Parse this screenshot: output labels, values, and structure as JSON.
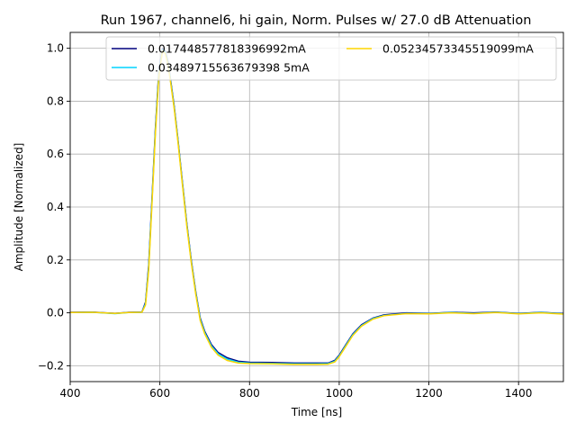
{
  "chart_data": {
    "type": "line",
    "title": "Run 1967, channel6, hi gain, Norm. Pulses w/ 27.0 dB Attenuation",
    "xlabel": "Time [ns]",
    "ylabel": "Amplitude [Normalized]",
    "xlim": [
      400,
      1500
    ],
    "ylim": [
      -0.26,
      1.06
    ],
    "xticks": [
      400,
      600,
      800,
      1000,
      1200,
      1400
    ],
    "yticks": [
      -0.2,
      0.0,
      0.2,
      0.4,
      0.6,
      0.8,
      1.0
    ],
    "xtick_labels": [
      "400",
      "600",
      "800",
      "1000",
      "1200",
      "1400"
    ],
    "ytick_labels": [
      "−0.2",
      "0.0",
      "0.2",
      "0.4",
      "0.6",
      "0.8",
      "1.0"
    ],
    "grid": true,
    "legend_position": "top-right",
    "x": [
      400,
      450,
      500,
      530,
      560,
      568,
      575,
      582,
      590,
      598,
      606,
      612,
      618,
      624,
      632,
      640,
      650,
      660,
      670,
      680,
      690,
      700,
      715,
      730,
      750,
      775,
      800,
      850,
      900,
      950,
      975,
      990,
      1000,
      1015,
      1030,
      1050,
      1075,
      1100,
      1150,
      1200,
      1250,
      1300,
      1350,
      1400,
      1450,
      1500
    ],
    "series": [
      {
        "name": "0.017448577818396992mA",
        "color": "#00007f",
        "values": [
          0.002,
          0.003,
          -0.002,
          0.002,
          0.003,
          0.04,
          0.18,
          0.42,
          0.7,
          0.92,
          1.0,
          0.99,
          0.95,
          0.88,
          0.78,
          0.66,
          0.5,
          0.34,
          0.2,
          0.08,
          -0.02,
          -0.07,
          -0.12,
          -0.15,
          -0.17,
          -0.183,
          -0.187,
          -0.188,
          -0.19,
          -0.19,
          -0.19,
          -0.18,
          -0.16,
          -0.12,
          -0.08,
          -0.045,
          -0.02,
          -0.008,
          0.0,
          -0.002,
          0.002,
          0.0,
          0.003,
          -0.002,
          0.002,
          -0.003
        ]
      },
      {
        "name": "0.03489715563679398 5mA",
        "color": "#00d4ff",
        "values": [
          0.001,
          0.002,
          -0.003,
          0.001,
          0.002,
          0.035,
          0.17,
          0.41,
          0.69,
          0.91,
          0.995,
          0.985,
          0.945,
          0.875,
          0.775,
          0.655,
          0.495,
          0.335,
          0.195,
          0.075,
          -0.025,
          -0.075,
          -0.125,
          -0.155,
          -0.175,
          -0.187,
          -0.19,
          -0.191,
          -0.193,
          -0.193,
          -0.192,
          -0.183,
          -0.163,
          -0.123,
          -0.083,
          -0.048,
          -0.022,
          -0.01,
          -0.002,
          -0.003,
          0.001,
          -0.002,
          0.002,
          -0.003,
          0.001,
          -0.004
        ]
      },
      {
        "name": "0.05234573345519099mA",
        "color": "#ffd500",
        "values": [
          0.001,
          0.002,
          -0.002,
          0.001,
          0.002,
          0.03,
          0.16,
          0.4,
          0.68,
          0.9,
          0.99,
          0.98,
          0.94,
          0.87,
          0.77,
          0.65,
          0.49,
          0.33,
          0.19,
          0.07,
          -0.03,
          -0.08,
          -0.13,
          -0.16,
          -0.18,
          -0.19,
          -0.192,
          -0.193,
          -0.195,
          -0.195,
          -0.194,
          -0.186,
          -0.166,
          -0.126,
          -0.086,
          -0.05,
          -0.024,
          -0.011,
          -0.003,
          -0.004,
          0.0,
          -0.003,
          0.001,
          -0.004,
          0.0,
          -0.005
        ]
      }
    ]
  }
}
